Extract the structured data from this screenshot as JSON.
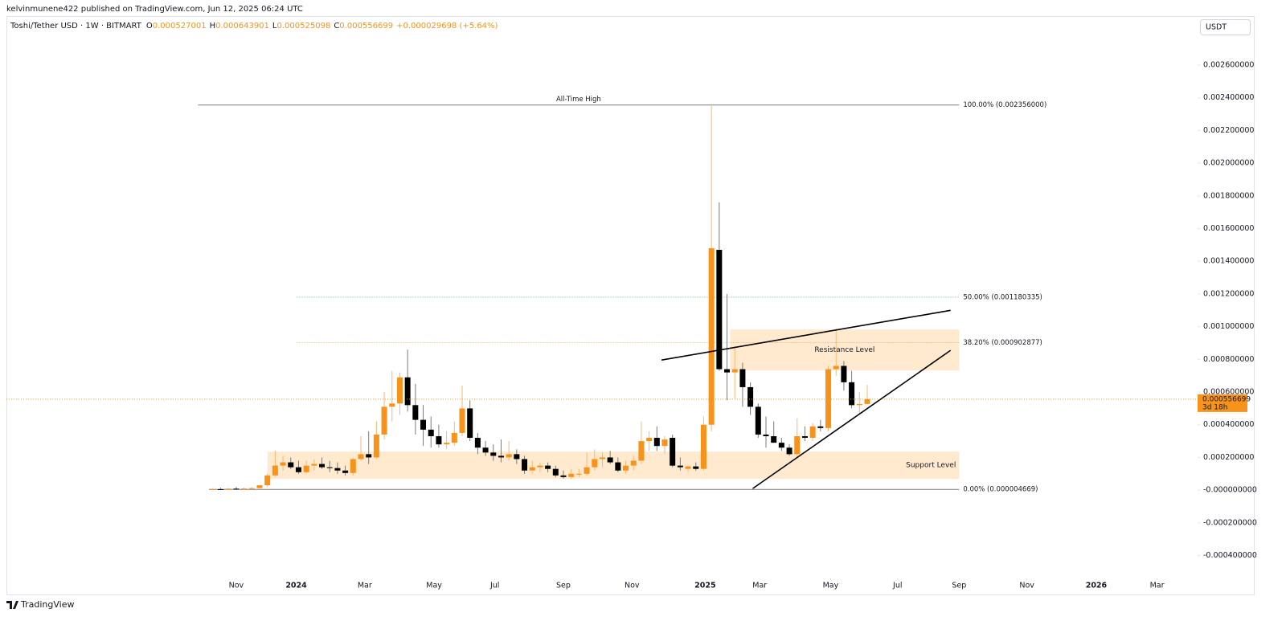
{
  "header": {
    "published": "kelvinmunene422 published on TradingView.com, Jun 12, 2025 06:24 UTC",
    "currency": "USDT",
    "brand": "TradingView"
  },
  "chart_data": {
    "type": "candlestick",
    "symbol": "Toshi/Tether USD · 1W · BITMART",
    "ohlc_labels": [
      "O",
      "H",
      "L",
      "C"
    ],
    "change": "+0.000029698 (+5.64%)",
    "countdown": "3d 18h",
    "up_color": "#f7931a",
    "down_color": "#000000",
    "up_wick": "#f9b870",
    "down_wick": "#7a7a7a",
    "open": [
      5e-06,
      6e-06,
      4e-06,
      9e-06,
      7e-06,
      1e-05,
      1.2e-05,
      3e-05,
      9e-05,
      0.00015,
      0.00017,
      0.00014,
      0.00011,
      0.00015,
      0.00016,
      0.00014,
      0.000135,
      0.00012,
      0.000105,
      0.00019,
      0.00022,
      0.0002,
      0.00034,
      0.00051,
      0.00053,
      0.00069,
      0.00052,
      0.00043,
      0.00037,
      0.00033,
      0.00028,
      0.00029,
      0.00035,
      0.0005,
      0.00032,
      0.00026,
      0.00023,
      0.00021,
      0.0002,
      0.00022,
      0.00019,
      0.00012,
      0.00014,
      0.00015,
      0.00013,
      9e-05,
      8e-05,
      0.0001,
      0.0001,
      0.00014,
      0.00019,
      0.0002,
      0.00017,
      0.00012,
      0.00015,
      0.00018,
      0.0003,
      0.00032,
      0.00027,
      0.00032,
      0.00015,
      0.00013,
      0.000145,
      0.00013,
      0.0004,
      0.00147,
      0.00074,
      0.00072,
      0.00074,
      0.00063,
      0.00051,
      0.00034,
      0.00033,
      0.00029,
      0.00026,
      0.00022,
      0.00033,
      0.00032,
      0.00039,
      0.00038,
      0.00074,
      0.00076,
      0.00066,
      0.00052,
      0.000527001
    ],
    "high": [
      1.2e-05,
      1.5e-05,
      1.2e-05,
      2e-05,
      1.5e-05,
      2e-05,
      3e-05,
      0.0001,
      0.00024,
      0.00021,
      0.0002,
      0.00018,
      0.00018,
      0.00019,
      0.0002,
      0.00018,
      0.00017,
      0.00015,
      0.0002,
      0.00033,
      0.00036,
      0.00042,
      0.0006,
      0.00073,
      0.00072,
      0.00086,
      0.00065,
      0.00052,
      0.00045,
      0.0004,
      0.00036,
      0.00042,
      0.00064,
      0.00055,
      0.00035,
      0.0003,
      0.00028,
      0.00031,
      0.0003,
      0.00025,
      0.00021,
      0.00018,
      0.00017,
      0.00017,
      0.00015,
      0.00012,
      0.00013,
      0.00013,
      0.00023,
      0.00025,
      0.00023,
      0.00024,
      0.0002,
      0.00018,
      0.00021,
      0.00042,
      0.00036,
      0.00039,
      0.00033,
      0.00034,
      0.0002,
      0.00015,
      0.00017,
      0.00045,
      0.002356,
      0.00176,
      0.0012,
      0.00088,
      0.00078,
      0.00066,
      0.00053,
      0.00045,
      0.00042,
      0.00032,
      0.00028,
      0.00044,
      0.00039,
      0.00041,
      0.00043,
      0.00076,
      0.00099,
      0.00079,
      0.00073,
      0.0006,
      0.000643901
    ],
    "low": [
      2e-06,
      3e-06,
      2e-06,
      5e-06,
      4e-06,
      6e-06,
      1e-05,
      2e-05,
      8e-05,
      0.00012,
      0.00013,
      0.0001,
      0.0001,
      0.00012,
      0.00013,
      0.00011,
      0.0001,
      9e-05,
      9e-05,
      0.00018,
      0.00016,
      0.00019,
      0.00031,
      0.00042,
      0.00046,
      0.00048,
      0.00034,
      0.00027,
      0.00026,
      0.00026,
      0.00025,
      0.00027,
      0.00033,
      0.0003,
      0.00022,
      0.00021,
      0.00018,
      0.00017,
      0.00018,
      0.00016,
      0.0001,
      0.0001,
      0.00011,
      0.00011,
      8e-05,
      7e-05,
      7e-05,
      8e-05,
      9e-05,
      0.00012,
      0.00014,
      0.00016,
      0.00011,
      0.0001,
      0.00012,
      0.00016,
      0.00024,
      0.00024,
      0.00022,
      0.00014,
      0.00012,
      0.00011,
      0.00012,
      0.00012,
      0.00036,
      0.00073,
      0.00055,
      0.00056,
      0.00051,
      0.00046,
      0.00032,
      0.00026,
      0.00029,
      0.00024,
      0.00021,
      0.0002,
      0.0003,
      0.0003,
      0.00036,
      0.00036,
      0.0007,
      0.00061,
      0.0005,
      0.00047,
      0.000525098
    ],
    "close": [
      6e-06,
      4e-06,
      9e-06,
      7e-06,
      1e-05,
      1.2e-05,
      3e-05,
      9e-05,
      0.00015,
      0.00017,
      0.00014,
      0.00011,
      0.00015,
      0.00016,
      0.00014,
      0.000135,
      0.00012,
      0.000105,
      0.00019,
      0.00022,
      0.0002,
      0.00034,
      0.00051,
      0.00053,
      0.00069,
      0.00052,
      0.00043,
      0.00037,
      0.00033,
      0.00028,
      0.00029,
      0.00035,
      0.0005,
      0.00032,
      0.00026,
      0.00023,
      0.00021,
      0.0002,
      0.00022,
      0.00019,
      0.00012,
      0.00014,
      0.00015,
      0.00013,
      9e-05,
      8e-05,
      0.0001,
      0.0001,
      0.00014,
      0.00019,
      0.0002,
      0.00017,
      0.00012,
      0.00015,
      0.00018,
      0.0003,
      0.00032,
      0.00027,
      0.00031,
      0.00015,
      0.00014,
      0.000145,
      0.00013,
      0.0004,
      0.00148,
      0.00074,
      0.00072,
      0.00074,
      0.00063,
      0.00051,
      0.00034,
      0.00033,
      0.00029,
      0.00026,
      0.00022,
      0.00033,
      0.00032,
      0.00039,
      0.00038,
      0.00074,
      0.00076,
      0.00066,
      0.00052,
      0.000527,
      0.000556699
    ],
    "xlim": [
      -26.5,
      126.2
    ],
    "xticks": [
      {
        "value": 3.0,
        "label": "Nov"
      },
      {
        "value": 10.7,
        "label": "2024"
      },
      {
        "value": 19.5,
        "label": "Mar"
      },
      {
        "value": 28.4,
        "label": "May"
      },
      {
        "value": 36.2,
        "label": "Jul"
      },
      {
        "value": 45.0,
        "label": "Sep"
      },
      {
        "value": 53.8,
        "label": "Nov"
      },
      {
        "value": 63.2,
        "label": "2025"
      },
      {
        "value": 70.2,
        "label": "Mar"
      },
      {
        "value": 79.3,
        "label": "May"
      },
      {
        "value": 87.9,
        "label": "Jul"
      },
      {
        "value": 95.8,
        "label": "Sep"
      },
      {
        "value": 104.5,
        "label": "Nov"
      },
      {
        "value": 113.4,
        "label": "2026"
      },
      {
        "value": 121.2,
        "label": "Mar"
      }
    ],
    "ylim": [
      -0.00053,
      0.0029
    ],
    "yticks": [
      {
        "value": 0.0026,
        "label": "0.002600000"
      },
      {
        "value": 0.0024,
        "label": "0.002400000"
      },
      {
        "value": 0.0022,
        "label": "0.002200000"
      },
      {
        "value": 0.002,
        "label": "0.002000000"
      },
      {
        "value": 0.0018,
        "label": "0.001800000"
      },
      {
        "value": 0.0016,
        "label": "0.001600000"
      },
      {
        "value": 0.0014,
        "label": "0.001400000"
      },
      {
        "value": 0.0012,
        "label": "0.001200000"
      },
      {
        "value": 0.001,
        "label": "0.001000000"
      },
      {
        "value": 0.0008,
        "label": "0.000800000"
      },
      {
        "value": 0.0006,
        "label": "0.000600000"
      },
      {
        "value": 0.0004,
        "label": "0.000400000"
      },
      {
        "value": 0.0002,
        "label": "0.000200000"
      },
      {
        "value": 0,
        "label": "-0.000000000"
      },
      {
        "value": -0.0002,
        "label": "-0.000200000"
      },
      {
        "value": -0.0004,
        "label": "-0.000400000"
      }
    ],
    "fib_levels": [
      {
        "value": 0.002356,
        "label": "100.00% (0.002356000)",
        "color": "#787b86",
        "from": -1.9,
        "to": 95.8,
        "note": "All-Time High",
        "note_color": "#4caf50"
      },
      {
        "value": 0.001180335,
        "label": "50.00% (0.001180335)",
        "color": "#4caf50",
        "from": 10.8,
        "to": 95.8
      },
      {
        "value": 0.000902877,
        "label": "38.20% (0.000902877)",
        "color": "#f7931a",
        "from": 10.8,
        "to": 95.8
      },
      {
        "value": 4.669e-06,
        "label": "0.00% (0.000004669)",
        "color": "#787b86",
        "from": -0.5,
        "to": 95.8
      }
    ],
    "zones": [
      {
        "label": "Resistance Level",
        "from": 66.4,
        "to": 95.8,
        "low": 0.000732,
        "high": 0.000983
      },
      {
        "label": "Support Level",
        "from": 7.0,
        "to": 95.8,
        "low": 6.88e-05,
        "high": 0.000236
      }
    ],
    "zone_color": "#ffe6c7",
    "trendlines": [
      {
        "from": [
          57.6,
          0.000796
        ],
        "to": [
          94.7,
          0.0011
        ]
      },
      {
        "from": [
          69.3,
          9.8e-06
        ],
        "to": [
          94.7,
          0.000855
        ]
      }
    ],
    "price_color": "#f7931a"
  }
}
